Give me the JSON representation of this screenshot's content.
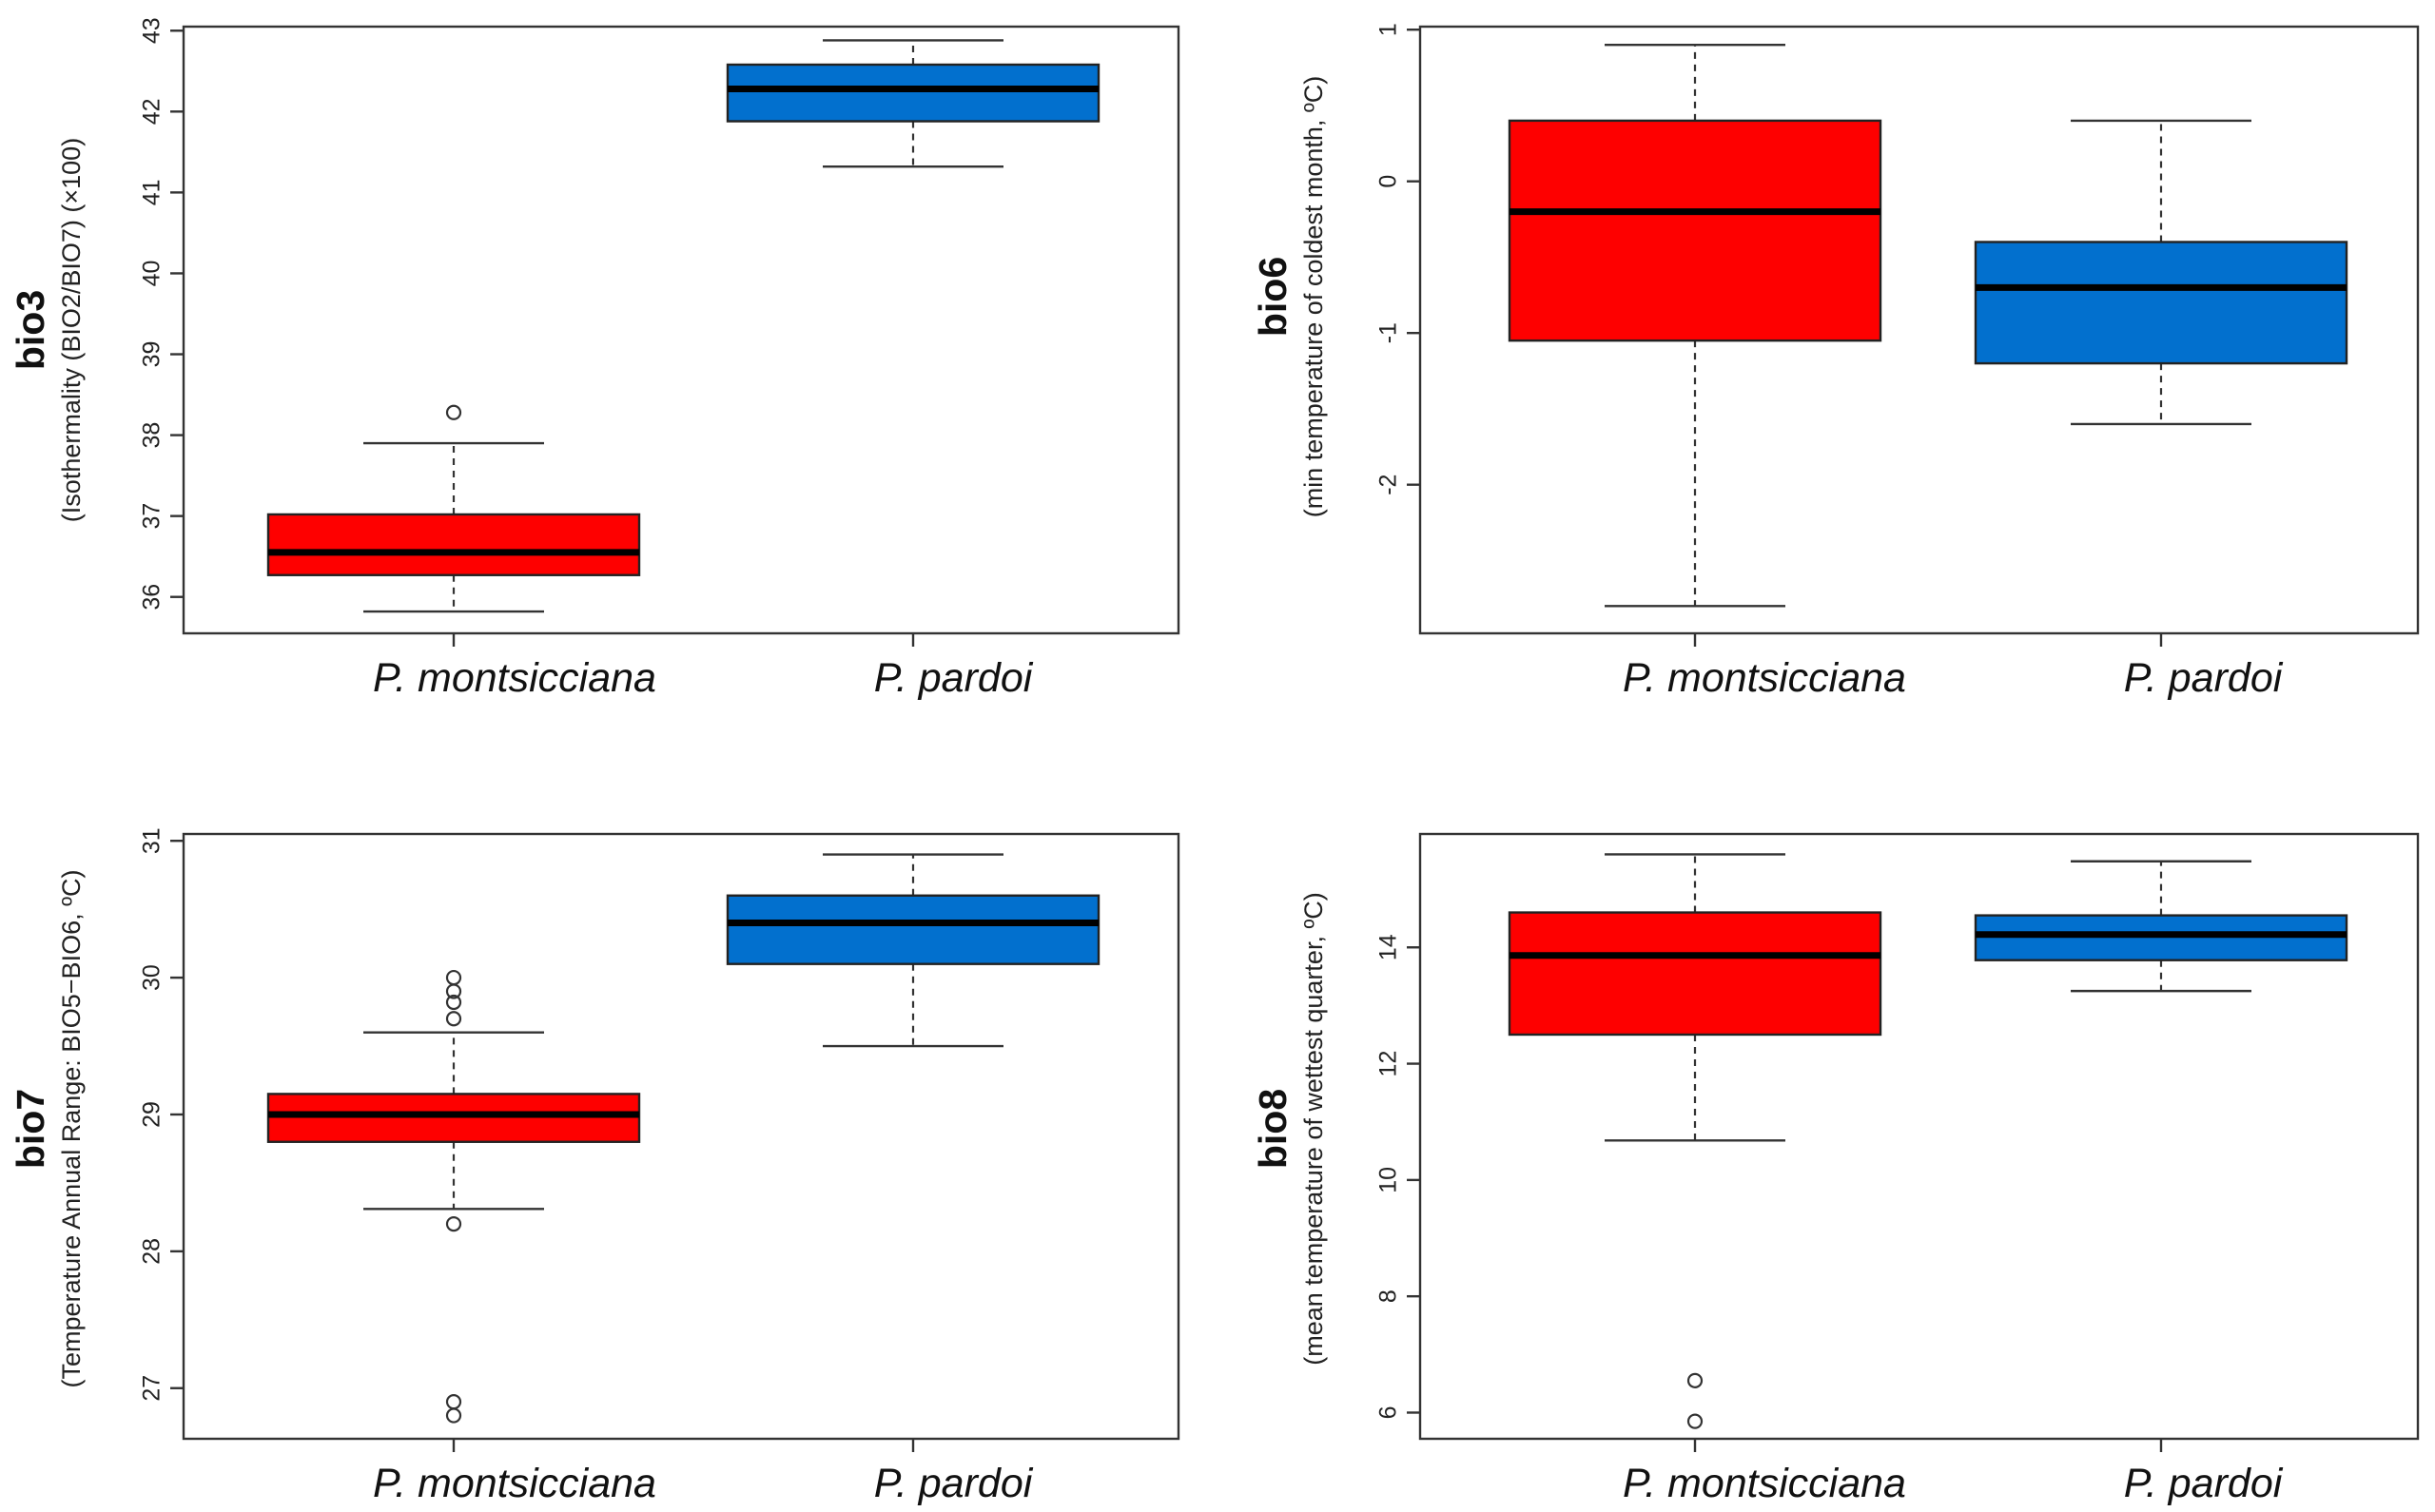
{
  "colors": {
    "montsicciana": "#fe0000",
    "pardoi": "#0270ce"
  },
  "chart_data": [
    {
      "type": "boxplot",
      "title": "",
      "ytitle": "bio3",
      "ysubtitle": "(Isothermality (BIO2/BIO7) (×100)",
      "ylim": [
        35.55,
        43.05
      ],
      "yticks": [
        36,
        37,
        38,
        39,
        40,
        41,
        42,
        43
      ],
      "yticklabels": [
        "36",
        "37",
        "38",
        "39",
        "40",
        "41",
        "42",
        "43"
      ],
      "categories": [
        "P. montsicciana",
        "P. pardoi"
      ],
      "series": [
        {
          "name": "P. montsicciana",
          "whisker_low": 35.82,
          "q1": 36.27,
          "median": 36.55,
          "q3": 37.02,
          "whisker_high": 37.9,
          "outliers": [
            38.28
          ],
          "color": "#fe0000"
        },
        {
          "name": "P. pardoi",
          "whisker_low": 41.32,
          "q1": 41.88,
          "median": 42.28,
          "q3": 42.58,
          "whisker_high": 42.88,
          "outliers": [],
          "color": "#0270ce"
        }
      ]
    },
    {
      "type": "boxplot",
      "title": "",
      "ytitle": "bio6",
      "ysubtitle": "(min temperature of coldest month, ºC)",
      "ylim": [
        -2.98,
        1.02
      ],
      "yticks": [
        -2,
        -1,
        0,
        1
      ],
      "yticklabels": [
        "-2",
        "-1",
        "0",
        "1"
      ],
      "categories": [
        "P. montsicciana",
        "P. pardoi"
      ],
      "series": [
        {
          "name": "P. montsicciana",
          "whisker_low": -2.8,
          "q1": -1.05,
          "median": -0.2,
          "q3": 0.4,
          "whisker_high": 0.9,
          "outliers": [],
          "color": "#fe0000"
        },
        {
          "name": "P. pardoi",
          "whisker_low": -1.6,
          "q1": -1.2,
          "median": -0.7,
          "q3": -0.4,
          "whisker_high": 0.4,
          "outliers": [],
          "color": "#0270ce"
        }
      ]
    },
    {
      "type": "boxplot",
      "title": "",
      "ytitle": "bio7",
      "ysubtitle": "(Temperature Annual Range: BIO5−BIO6, ºC)",
      "ylim": [
        26.63,
        31.05
      ],
      "yticks": [
        27,
        28,
        29,
        30,
        31
      ],
      "yticklabels": [
        "27",
        "28",
        "29",
        "30",
        "31"
      ],
      "categories": [
        "P. montsicciana",
        "P. pardoi"
      ],
      "series": [
        {
          "name": "P. montsicciana",
          "whisker_low": 28.31,
          "q1": 28.8,
          "median": 29.0,
          "q3": 29.15,
          "whisker_high": 29.6,
          "outliers": [
            30.0,
            29.9,
            29.82,
            29.7,
            28.2,
            26.9,
            26.8
          ],
          "color": "#fe0000"
        },
        {
          "name": "P. pardoi",
          "whisker_low": 29.5,
          "q1": 30.1,
          "median": 30.4,
          "q3": 30.6,
          "whisker_high": 30.9,
          "outliers": [],
          "color": "#0270ce"
        }
      ]
    },
    {
      "type": "boxplot",
      "title": "",
      "ytitle": "bio8",
      "ysubtitle": "(mean temperature of wettest quarter, ºC)",
      "ylim": [
        5.55,
        15.95
      ],
      "yticks": [
        6,
        8,
        10,
        12,
        14
      ],
      "yticklabels": [
        "6",
        "8",
        "10",
        "12",
        "14"
      ],
      "categories": [
        "P. montsicciana",
        "P. pardoi"
      ],
      "series": [
        {
          "name": "P. montsicciana",
          "whisker_low": 10.68,
          "q1": 12.5,
          "median": 13.86,
          "q3": 14.6,
          "whisker_high": 15.6,
          "outliers": [
            6.55,
            5.85
          ],
          "color": "#fe0000"
        },
        {
          "name": "P. pardoi",
          "whisker_low": 13.25,
          "q1": 13.78,
          "median": 14.22,
          "q3": 14.55,
          "whisker_high": 15.48,
          "outliers": [],
          "color": "#0270ce"
        }
      ]
    }
  ]
}
